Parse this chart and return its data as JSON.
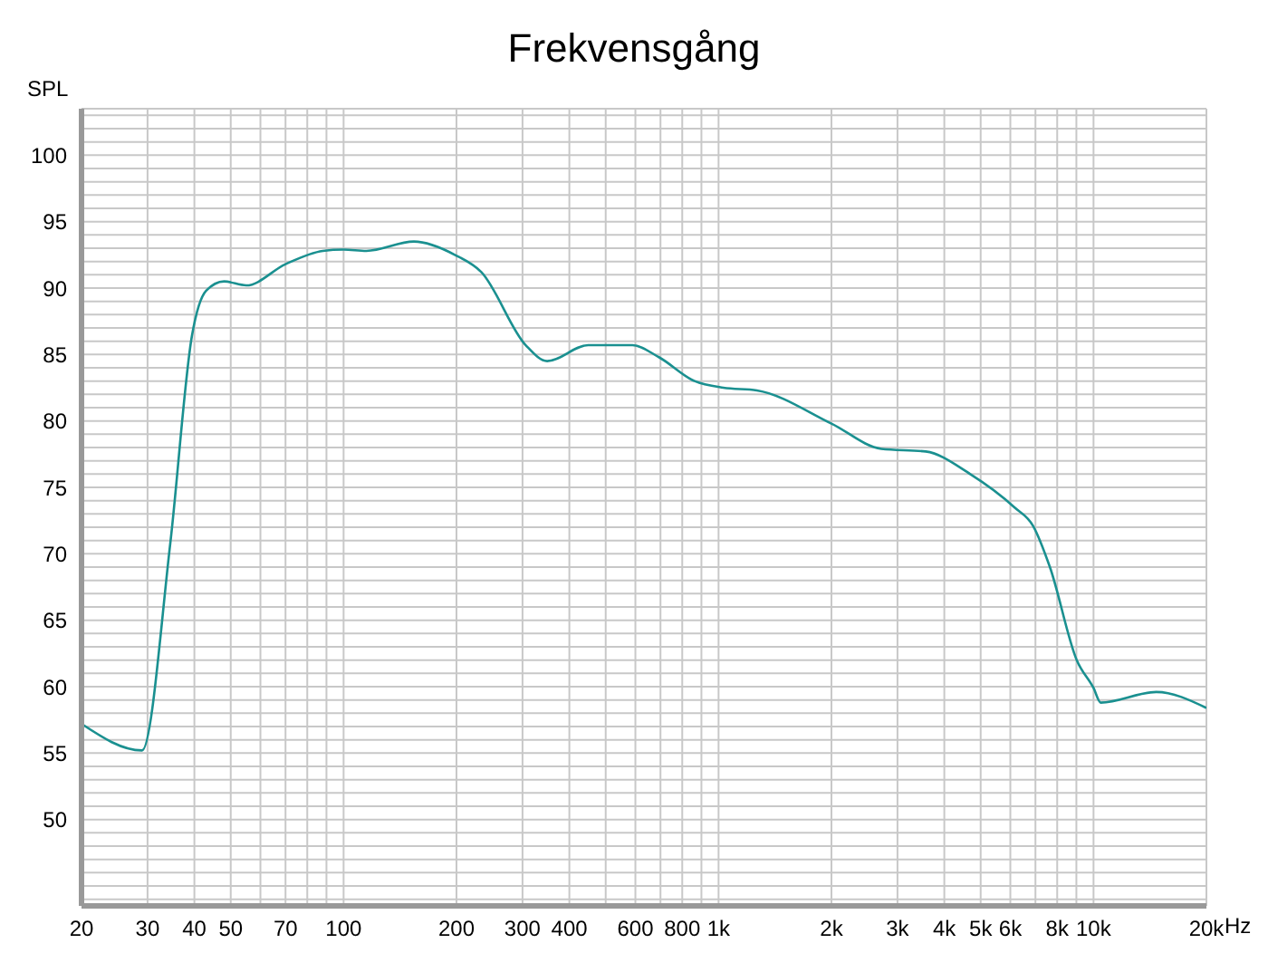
{
  "chart_data": {
    "type": "line",
    "title": "Frekvensgång",
    "ylabel": "SPL",
    "xlabel": "Hz",
    "log": "x",
    "grid": true,
    "marker": "none",
    "line_style": "solid",
    "x": [
      20,
      29,
      34.5,
      39.4,
      43,
      48,
      55,
      70,
      88,
      100,
      115,
      154,
      198,
      233,
      306,
      349,
      449,
      589,
      693,
      863,
      1030,
      1265,
      2000,
      2717,
      3568,
      4690,
      6150,
      6900,
      7650,
      9020,
      10000,
      10450,
      14700,
      20000
    ],
    "series": [
      {
        "color": "#1a9090",
        "values": [
          57.2,
          55.2,
          70.8,
          86.4,
          89.8,
          90.5,
          90.2,
          91.8,
          92.8,
          92.9,
          92.8,
          93.5,
          92.5,
          91.2,
          85.7,
          84.5,
          85.7,
          85.7,
          84.8,
          83.0,
          82.5,
          82.3,
          79.8,
          77.9,
          77.7,
          76.0,
          73.5,
          72.1,
          69.0,
          62.0,
          59.9,
          58.8,
          59.6,
          58.4
        ]
      }
    ],
    "xlim": [
      20,
      20000
    ],
    "xticks": [
      20,
      30,
      40,
      50,
      {
        "value": 60,
        "label": null
      },
      70,
      {
        "value": 80,
        "label": null
      },
      {
        "value": 90,
        "label": null
      },
      100,
      200,
      300,
      400,
      {
        "value": 500,
        "label": null
      },
      600,
      {
        "value": 700,
        "label": null
      },
      800,
      {
        "value": 900,
        "label": null
      },
      {
        "value": 1000,
        "label": "1k"
      },
      {
        "value": 2000,
        "label": "2k"
      },
      {
        "value": 3000,
        "label": "3k"
      },
      {
        "value": 4000,
        "label": "4k"
      },
      {
        "value": 5000,
        "label": "5k"
      },
      {
        "value": 6000,
        "label": "6k"
      },
      {
        "value": 7000,
        "label": null
      },
      {
        "value": 8000,
        "label": "8k"
      },
      {
        "value": 9000,
        "label": null
      },
      {
        "value": 10000,
        "label": "10k"
      },
      {
        "value": 20000,
        "label": "20k"
      }
    ],
    "ylim": [
      43.5,
      103.5
    ],
    "yticks": [
      {
        "value": 44,
        "label": null
      },
      {
        "value": 45,
        "label": null
      },
      {
        "value": 46,
        "label": null
      },
      {
        "value": 47,
        "label": null
      },
      {
        "value": 48,
        "label": null
      },
      {
        "value": 49,
        "label": null
      },
      50,
      {
        "value": 51,
        "label": null
      },
      {
        "value": 52,
        "label": null
      },
      {
        "value": 53,
        "label": null
      },
      {
        "value": 54,
        "label": null
      },
      55,
      {
        "value": 56,
        "label": null
      },
      {
        "value": 57,
        "label": null
      },
      {
        "value": 58,
        "label": null
      },
      {
        "value": 59,
        "label": null
      },
      60,
      {
        "value": 61,
        "label": null
      },
      {
        "value": 62,
        "label": null
      },
      {
        "value": 63,
        "label": null
      },
      {
        "value": 64,
        "label": null
      },
      65,
      {
        "value": 66,
        "label": null
      },
      {
        "value": 67,
        "label": null
      },
      {
        "value": 68,
        "label": null
      },
      {
        "value": 69,
        "label": null
      },
      70,
      {
        "value": 71,
        "label": null
      },
      {
        "value": 72,
        "label": null
      },
      {
        "value": 73,
        "label": null
      },
      {
        "value": 74,
        "label": null
      },
      75,
      {
        "value": 76,
        "label": null
      },
      {
        "value": 77,
        "label": null
      },
      {
        "value": 78,
        "label": null
      },
      {
        "value": 79,
        "label": null
      },
      80,
      {
        "value": 81,
        "label": null
      },
      {
        "value": 82,
        "label": null
      },
      {
        "value": 83,
        "label": null
      },
      {
        "value": 84,
        "label": null
      },
      85,
      {
        "value": 86,
        "label": null
      },
      {
        "value": 87,
        "label": null
      },
      {
        "value": 88,
        "label": null
      },
      {
        "value": 89,
        "label": null
      },
      90,
      {
        "value": 91,
        "label": null
      },
      {
        "value": 92,
        "label": null
      },
      {
        "value": 93,
        "label": null
      },
      {
        "value": 94,
        "label": null
      },
      95,
      {
        "value": 96,
        "label": null
      },
      {
        "value": 97,
        "label": null
      },
      {
        "value": 98,
        "label": null
      },
      {
        "value": 99,
        "label": null
      },
      100,
      {
        "value": 101,
        "label": null
      },
      {
        "value": 102,
        "label": null
      },
      {
        "value": 103,
        "label": null
      }
    ]
  }
}
